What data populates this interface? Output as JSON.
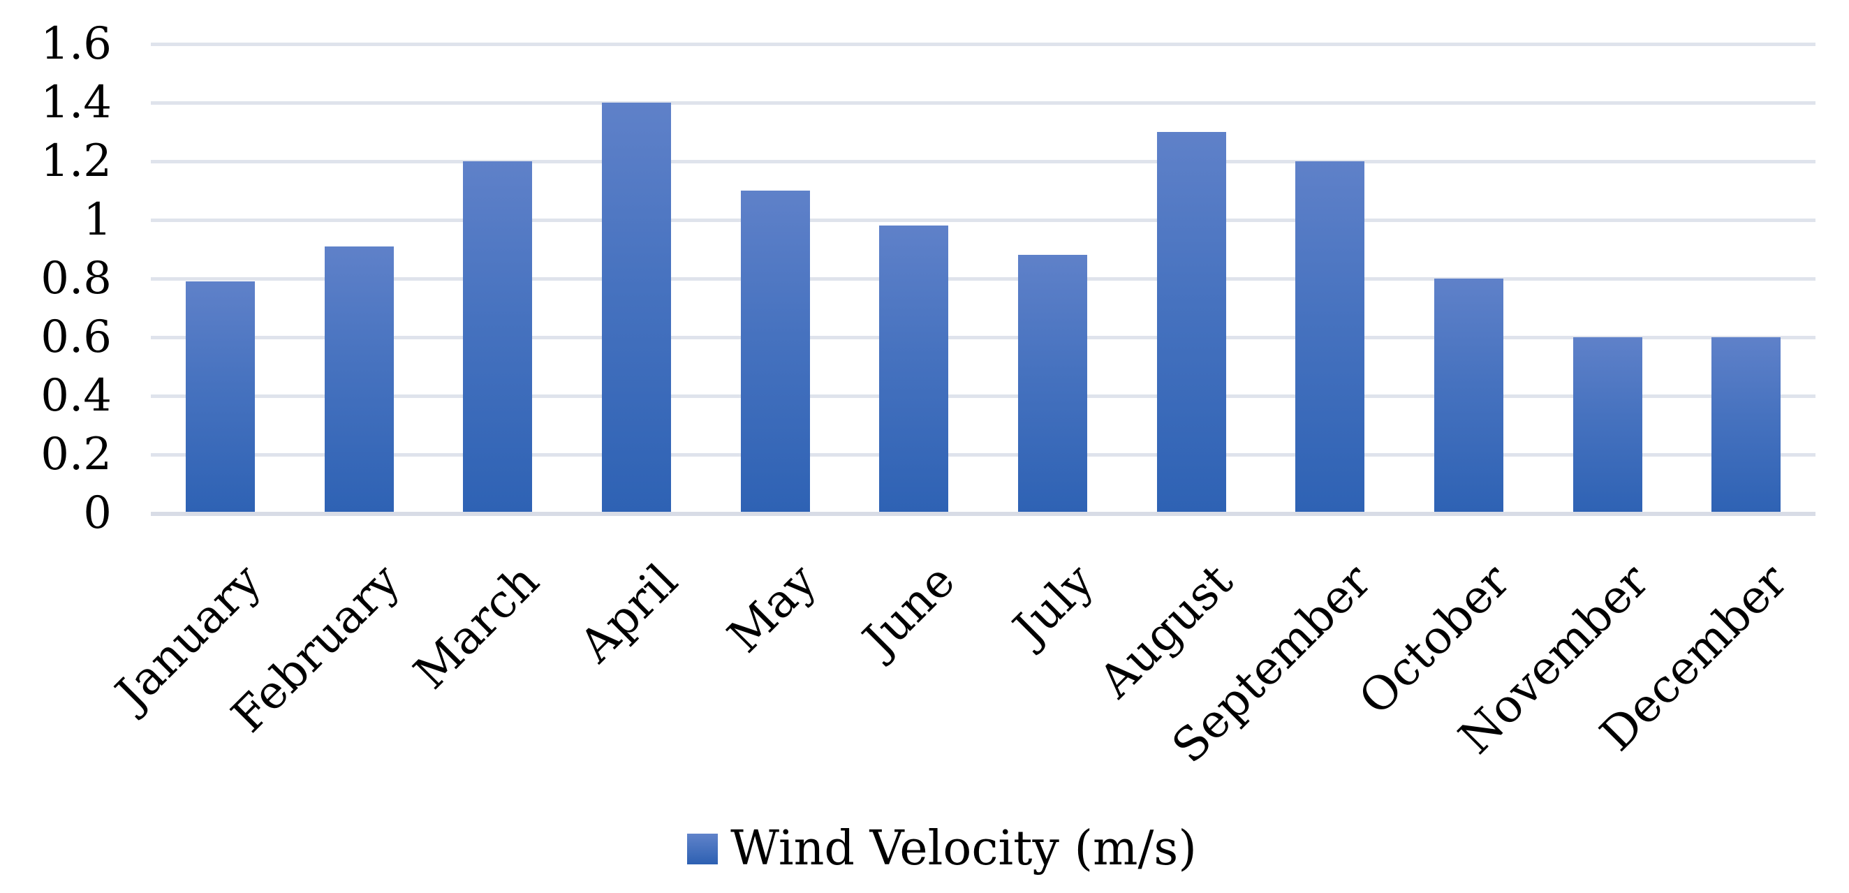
{
  "chart_data": {
    "type": "bar",
    "title": "",
    "xlabel": "",
    "ylabel": "",
    "categories": [
      "January",
      "February",
      "March",
      "April",
      "May",
      "June",
      "July",
      "August",
      "September",
      "October",
      "November",
      "December"
    ],
    "values": [
      0.79,
      0.91,
      1.2,
      1.4,
      1.1,
      0.98,
      0.88,
      1.3,
      1.2,
      0.8,
      0.6,
      0.6
    ],
    "series_name": "Wind Velocity (m/s)",
    "ylim": [
      0,
      1.6
    ],
    "ytick_step": 0.2,
    "ytick_labels": [
      "0",
      "0.2",
      "0.4",
      "0.6",
      "0.8",
      "1",
      "1.2",
      "1.4",
      "1.6"
    ],
    "grid": "horizontal",
    "legend_position": "bottom-center",
    "x_label_rotation_deg": -45,
    "colors": {
      "bar_gradient_top": "#5f81c9",
      "bar_gradient_bottom": "#2e62b4",
      "gridline": "#dfe3ec",
      "axis_line": "#d8dce6",
      "text": "#000000",
      "background": "#ffffff"
    }
  },
  "legend": {
    "label": "Wind Velocity (m/s)",
    "swatch_icon": "blue-gradient-square"
  }
}
